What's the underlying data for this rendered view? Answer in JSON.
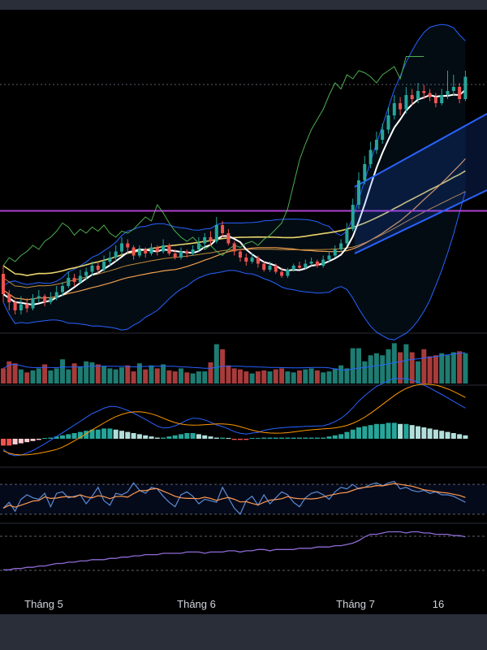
{
  "chart_data": {
    "type": "candlestick",
    "x_ticks": [
      "Tháng 5",
      "Tháng 6",
      "Tháng 7",
      "16"
    ],
    "price": {
      "candles": [
        [
          84,
          74,
          88,
          70
        ],
        [
          74,
          70,
          76,
          66
        ],
        [
          70,
          66,
          71,
          64
        ],
        [
          66,
          69,
          73,
          64
        ],
        [
          69,
          67,
          72,
          65
        ],
        [
          67,
          72,
          74,
          66
        ],
        [
          72,
          73,
          76,
          70
        ],
        [
          73,
          70,
          74,
          68
        ],
        [
          70,
          72,
          75,
          69
        ],
        [
          72,
          75,
          78,
          71
        ],
        [
          75,
          78,
          80,
          73
        ],
        [
          78,
          82,
          85,
          77
        ],
        [
          82,
          80,
          84,
          78
        ],
        [
          80,
          83,
          86,
          79
        ],
        [
          83,
          85,
          87,
          81
        ],
        [
          85,
          88,
          90,
          83
        ],
        [
          88,
          86,
          90,
          84
        ],
        [
          86,
          90,
          93,
          85
        ],
        [
          90,
          92,
          95,
          88
        ],
        [
          92,
          95,
          98,
          90
        ],
        [
          95,
          99,
          102,
          93
        ],
        [
          99,
          97,
          101,
          94
        ],
        [
          97,
          93,
          98,
          91
        ],
        [
          93,
          96,
          98,
          92
        ],
        [
          96,
          94,
          97,
          92
        ],
        [
          94,
          97,
          99,
          93
        ],
        [
          97,
          95,
          98,
          93
        ],
        [
          95,
          98,
          101,
          94
        ],
        [
          98,
          94,
          99,
          93
        ],
        [
          94,
          92,
          96,
          91
        ],
        [
          92,
          95,
          97,
          91
        ],
        [
          95,
          94,
          96,
          92
        ],
        [
          94,
          96,
          98,
          93
        ],
        [
          96,
          99,
          102,
          95
        ],
        [
          99,
          102,
          104,
          97
        ],
        [
          102,
          100,
          105,
          98
        ],
        [
          100,
          108,
          112,
          99
        ],
        [
          108,
          104,
          110,
          102
        ],
        [
          104,
          99,
          106,
          98
        ],
        [
          99,
          95,
          100,
          93
        ],
        [
          95,
          92,
          96,
          90
        ],
        [
          92,
          90,
          94,
          88
        ],
        [
          90,
          92,
          94,
          89
        ],
        [
          92,
          89,
          93,
          87
        ],
        [
          89,
          86,
          90,
          85
        ],
        [
          86,
          88,
          90,
          85
        ],
        [
          88,
          85,
          89,
          84
        ],
        [
          85,
          83,
          87,
          82
        ],
        [
          83,
          86,
          87,
          82
        ],
        [
          86,
          88,
          89,
          85
        ],
        [
          88,
          87,
          90,
          86
        ],
        [
          87,
          89,
          91,
          86
        ],
        [
          89,
          90,
          92,
          88
        ],
        [
          90,
          88,
          91,
          87
        ],
        [
          88,
          91,
          93,
          87
        ],
        [
          91,
          93,
          95,
          90
        ],
        [
          93,
          96,
          98,
          92
        ],
        [
          96,
          99,
          101,
          95
        ],
        [
          99,
          106,
          109,
          98
        ],
        [
          106,
          118,
          121,
          105
        ],
        [
          118,
          130,
          134,
          116
        ],
        [
          130,
          138,
          142,
          128
        ],
        [
          138,
          145,
          149,
          136
        ],
        [
          145,
          150,
          154,
          143
        ],
        [
          150,
          155,
          158,
          148
        ],
        [
          155,
          162,
          166,
          153
        ],
        [
          162,
          168,
          172,
          160
        ],
        [
          168,
          165,
          171,
          162
        ],
        [
          165,
          172,
          176,
          163
        ],
        [
          172,
          170,
          175,
          167
        ],
        [
          170,
          174,
          178,
          168
        ],
        [
          174,
          173,
          177,
          170
        ],
        [
          173,
          171,
          175,
          169
        ],
        [
          171,
          168,
          173,
          166
        ],
        [
          168,
          172,
          175,
          167
        ],
        [
          172,
          174,
          184,
          170
        ],
        [
          174,
          176,
          182,
          172
        ],
        [
          176,
          170,
          178,
          168
        ],
        [
          170,
          181,
          184,
          169
        ]
      ]
    },
    "volume": {
      "values": [
        30,
        44,
        40,
        28,
        22,
        26,
        30,
        38,
        26,
        30,
        48,
        28,
        40,
        34,
        44,
        42,
        38,
        34,
        30,
        28,
        32,
        36,
        24,
        40,
        28,
        36,
        30,
        38,
        26,
        24,
        30,
        22,
        20,
        24,
        24,
        42,
        78,
        68,
        36,
        30,
        28,
        24,
        20,
        24,
        26,
        24,
        28,
        30,
        24,
        22,
        26,
        28,
        30,
        26,
        22,
        24,
        30,
        36,
        30,
        70,
        70,
        44,
        56,
        60,
        56,
        68,
        80,
        62,
        78,
        62,
        44,
        68,
        54,
        56,
        60,
        56,
        62,
        64,
        60
      ]
    },
    "macd": {
      "histogram": [
        -6,
        -6,
        -5,
        -4,
        -3,
        -2,
        -1,
        0,
        1,
        2,
        3,
        4,
        5,
        6,
        7,
        8,
        8,
        9,
        9,
        8,
        7,
        6,
        5,
        4,
        3,
        2,
        1,
        1,
        2,
        3,
        4,
        5,
        5,
        4,
        3,
        2,
        1,
        1,
        0,
        -1,
        -1,
        -1,
        0,
        0,
        1,
        1,
        1,
        1,
        1,
        1,
        1,
        1,
        1,
        1,
        1,
        2,
        3,
        4,
        6,
        8,
        10,
        11,
        12,
        13,
        13,
        14,
        14,
        13,
        13,
        12,
        11,
        10,
        9,
        8,
        7,
        6,
        5,
        4,
        3
      ]
    },
    "rsi": {
      "values": [
        38,
        46,
        34,
        50,
        56,
        52,
        50,
        58,
        40,
        58,
        60,
        52,
        54,
        56,
        44,
        54,
        66,
        48,
        42,
        58,
        56,
        60,
        72,
        62,
        58,
        66,
        64,
        54,
        46,
        40,
        56,
        60,
        54,
        44,
        50,
        48,
        46,
        66,
        52,
        38,
        30,
        48,
        54,
        42,
        56,
        44,
        52,
        60,
        56,
        46,
        40,
        52,
        58,
        60,
        56,
        50,
        60,
        66,
        64,
        70,
        64,
        66,
        70,
        72,
        68,
        72,
        74,
        64,
        66,
        62,
        60,
        62,
        58,
        60,
        56,
        56,
        54,
        50,
        46
      ]
    },
    "indicator": {
      "values": [
        24,
        24,
        26,
        26,
        28,
        28,
        30,
        30,
        32,
        34,
        34,
        36,
        36,
        38,
        38,
        40,
        40,
        40,
        42,
        42,
        44,
        44,
        46,
        46,
        48,
        48,
        48,
        50,
        50,
        50,
        50,
        52,
        52,
        52,
        50,
        52,
        52,
        52,
        54,
        54,
        52,
        54,
        54,
        56,
        56,
        54,
        56,
        56,
        56,
        56,
        58,
        58,
        58,
        60,
        60,
        60,
        62,
        62,
        64,
        66,
        70,
        76,
        80,
        80,
        82,
        84,
        84,
        84,
        82,
        84,
        84,
        82,
        82,
        80,
        80,
        80,
        78,
        78,
        76
      ]
    }
  }
}
